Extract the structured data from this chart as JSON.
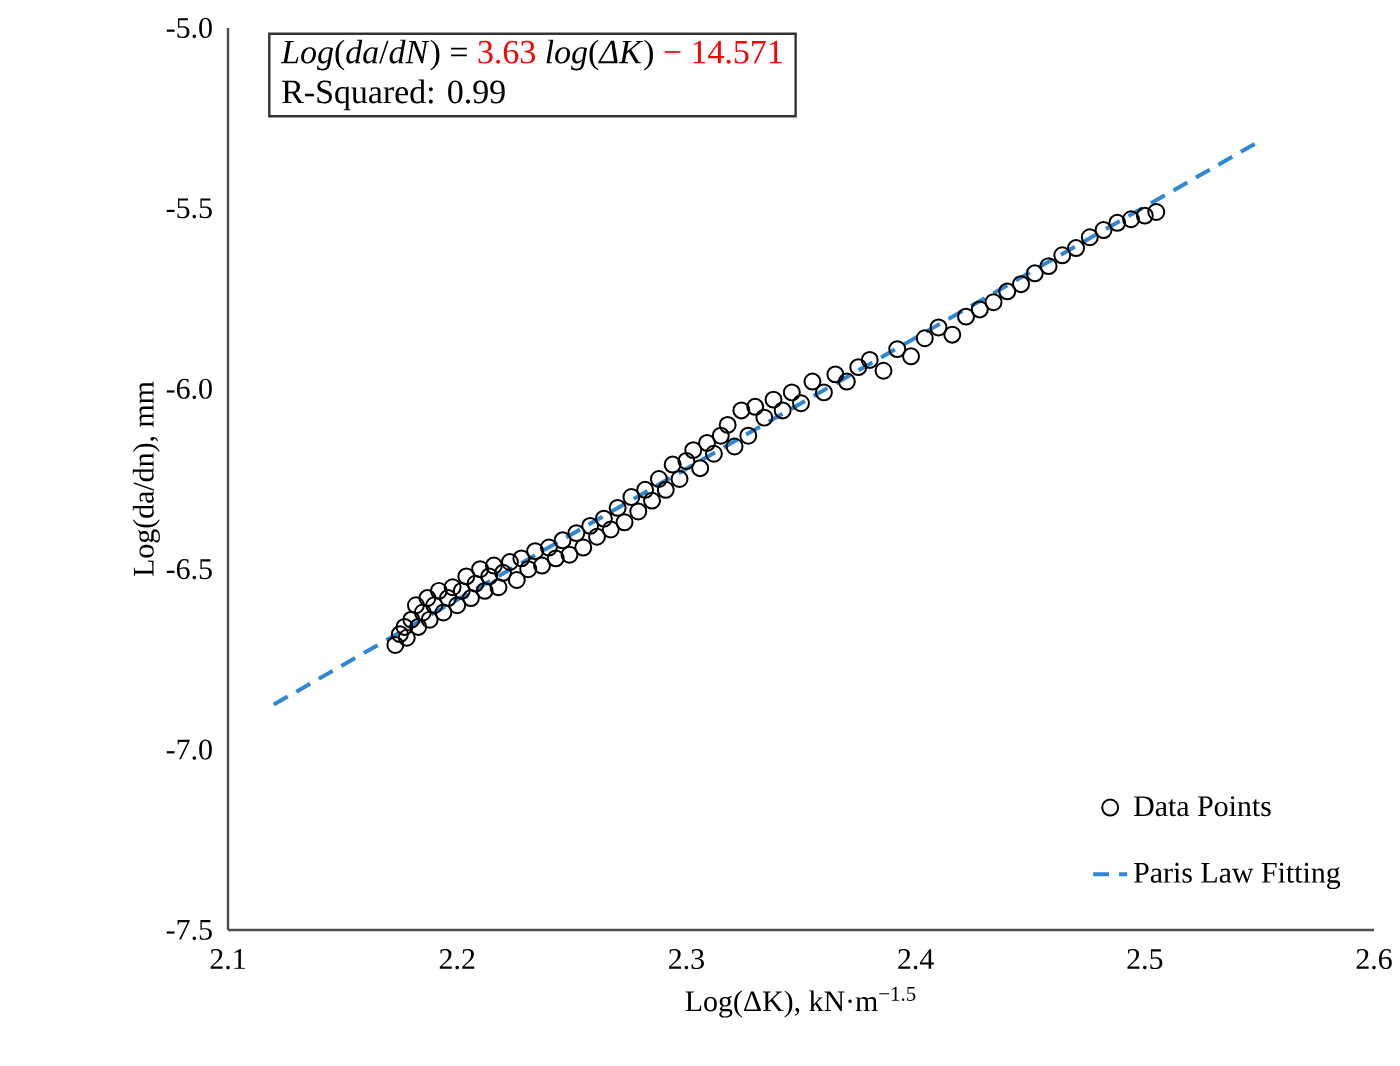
{
  "chart_data": {
    "type": "scatter",
    "xlabel": "Log(ΔK), kN·m$^{−1.5}$",
    "ylabel": "Log(da/dn), mm",
    "annotations": [
      "*Log*(*da*/*dN*) =",
      "3.63",
      "*log*(*ΔK*)",
      "− 14.571",
      "R-Squared: 0.99"
    ],
    "xlim": [
      2.1,
      2.6
    ],
    "xticks": [
      2.1,
      2.2,
      2.3,
      2.4,
      2.5,
      2.6
    ],
    "ylim": [
      -7.5,
      -5.0
    ],
    "yticks": [
      {
        "value": -7.5,
        "label": "-7.5"
      },
      {
        "value": -7.0,
        "label": "-7.0"
      },
      {
        "value": -6.5,
        "label": "-6.5"
      },
      {
        "value": -6.0,
        "label": "-6.0"
      },
      {
        "value": -5.5,
        "label": "-5.5"
      },
      {
        "value": -5.0,
        "label": "-5.0"
      }
    ],
    "grid": false,
    "legend": "bottom right",
    "series": [
      {
        "name": "Data Points",
        "color": "#000000",
        "marker": "circle",
        "x": [
          2.173,
          2.175,
          2.177,
          2.178,
          2.18,
          2.182,
          2.183,
          2.185,
          2.187,
          2.188,
          2.19,
          2.192,
          2.194,
          2.196,
          2.198,
          2.2,
          2.202,
          2.204,
          2.206,
          2.208,
          2.21,
          2.212,
          2.214,
          2.216,
          2.218,
          2.22,
          2.223,
          2.226,
          2.228,
          2.231,
          2.234,
          2.237,
          2.24,
          2.243,
          2.246,
          2.249,
          2.252,
          2.255,
          2.258,
          2.261,
          2.264,
          2.267,
          2.27,
          2.273,
          2.276,
          2.279,
          2.282,
          2.285,
          2.288,
          2.291,
          2.294,
          2.297,
          2.3,
          2.303,
          2.306,
          2.309,
          2.312,
          2.315,
          2.318,
          2.321,
          2.324,
          2.327,
          2.33,
          2.334,
          2.338,
          2.342,
          2.346,
          2.35,
          2.355,
          2.36,
          2.365,
          2.37,
          2.375,
          2.38,
          2.386,
          2.392,
          2.398,
          2.404,
          2.41,
          2.416,
          2.422,
          2.428,
          2.434,
          2.44,
          2.446,
          2.452,
          2.458,
          2.464,
          2.47,
          2.476,
          2.482,
          2.488,
          2.494,
          2.5,
          2.505
        ],
        "values": [
          -6.71,
          -6.68,
          -6.66,
          -6.69,
          -6.64,
          -6.6,
          -6.66,
          -6.62,
          -6.58,
          -6.64,
          -6.6,
          -6.56,
          -6.62,
          -6.58,
          -6.55,
          -6.6,
          -6.56,
          -6.52,
          -6.58,
          -6.54,
          -6.5,
          -6.56,
          -6.52,
          -6.49,
          -6.55,
          -6.51,
          -6.48,
          -6.53,
          -6.47,
          -6.5,
          -6.45,
          -6.49,
          -6.44,
          -6.47,
          -6.42,
          -6.46,
          -6.4,
          -6.44,
          -6.38,
          -6.41,
          -6.36,
          -6.39,
          -6.33,
          -6.37,
          -6.3,
          -6.34,
          -6.28,
          -6.31,
          -6.25,
          -6.28,
          -6.21,
          -6.25,
          -6.2,
          -6.17,
          -6.22,
          -6.15,
          -6.18,
          -6.13,
          -6.1,
          -6.16,
          -6.06,
          -6.13,
          -6.05,
          -6.08,
          -6.03,
          -6.06,
          -6.01,
          -6.04,
          -5.98,
          -6.01,
          -5.96,
          -5.98,
          -5.94,
          -5.92,
          -5.95,
          -5.89,
          -5.91,
          -5.86,
          -5.83,
          -5.85,
          -5.8,
          -5.78,
          -5.76,
          -5.73,
          -5.71,
          -5.68,
          -5.66,
          -5.63,
          -5.61,
          -5.58,
          -5.56,
          -5.54,
          -5.53,
          -5.52,
          -5.51
        ]
      },
      {
        "name": "Paris Law Fitting",
        "type": "line",
        "color": "#2e86d6",
        "line_style": "dashed",
        "marker": "none",
        "x": [
          2.12,
          2.55
        ],
        "values": [
          -6.875,
          -5.314
        ]
      }
    ]
  }
}
